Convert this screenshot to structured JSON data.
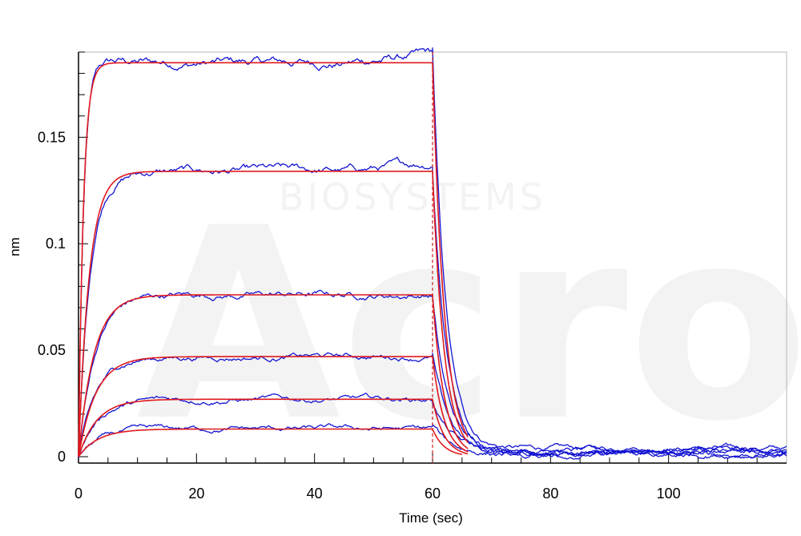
{
  "chart_data": {
    "type": "line",
    "title": "",
    "xlabel": "Time (sec)",
    "ylabel": "nm",
    "xlim": [
      0,
      120
    ],
    "ylim": [
      -0.003,
      0.19
    ],
    "x_ticks": [
      0,
      20,
      40,
      60,
      80,
      100
    ],
    "y_ticks": [
      0,
      0.05,
      0.1,
      0.15
    ],
    "x_tick_labels": [
      "0",
      "20",
      "40",
      "60",
      "80",
      "100"
    ],
    "y_tick_labels": [
      "0",
      "0.05",
      "0.1",
      "0.15"
    ],
    "grid": false,
    "legend": "none",
    "association_end": 60,
    "dissociation_marker_x": 60,
    "colors": {
      "measured": "#1414d2",
      "fitted": "#e0191e",
      "marker": "#d22020"
    },
    "watermark": {
      "logo": "Acro",
      "subtitle": "BIOSYSTEMS"
    },
    "series": [
      {
        "role": "measured",
        "plateau": 0.185,
        "kon": 1.2,
        "koff": 0.45,
        "baseline": 0.004
      },
      {
        "role": "measured",
        "plateau": 0.134,
        "kon": 0.55,
        "koff": 0.42,
        "baseline": 0.002
      },
      {
        "role": "measured",
        "plateau": 0.076,
        "kon": 0.38,
        "koff": 0.4,
        "baseline": 0.003
      },
      {
        "role": "measured",
        "plateau": 0.047,
        "kon": 0.34,
        "koff": 0.35,
        "baseline": 0.001
      },
      {
        "role": "measured",
        "plateau": 0.027,
        "kon": 0.32,
        "koff": 0.3,
        "baseline": 0.002
      },
      {
        "role": "measured",
        "plateau": 0.013,
        "kon": 0.3,
        "koff": 0.3,
        "baseline": 0.001
      },
      {
        "role": "fitted",
        "plateau": 0.185,
        "kon": 1.2,
        "koff": 0.5
      },
      {
        "role": "fitted",
        "plateau": 0.134,
        "kon": 0.55,
        "koff": 0.5
      },
      {
        "role": "fitted",
        "plateau": 0.076,
        "kon": 0.38,
        "koff": 0.5
      },
      {
        "role": "fitted",
        "plateau": 0.047,
        "kon": 0.34,
        "koff": 0.5
      },
      {
        "role": "fitted",
        "plateau": 0.027,
        "kon": 0.32,
        "koff": 0.5
      },
      {
        "role": "fitted",
        "plateau": 0.013,
        "kon": 0.3,
        "koff": 0.5
      }
    ]
  }
}
